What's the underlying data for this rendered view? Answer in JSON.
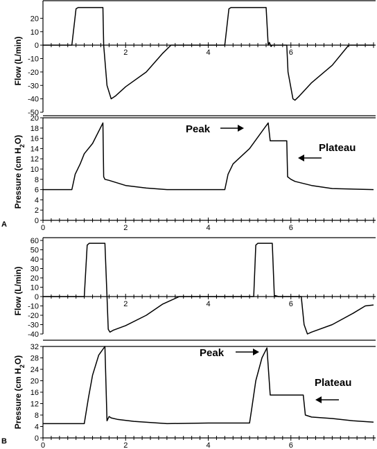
{
  "chart_data": [
    {
      "panel": "A",
      "type": "line",
      "ylabel": "Flow (L/min)",
      "ylim": [
        -50,
        30
      ],
      "yticks": [
        -50,
        -40,
        -30,
        -20,
        -10,
        0,
        10,
        20
      ],
      "xlim": [
        0,
        8
      ],
      "xticks": [
        2,
        4,
        6
      ],
      "x": [
        0,
        0.7,
        0.8,
        0.85,
        1.45,
        1.47,
        1.55,
        1.65,
        1.75,
        2.0,
        2.5,
        2.9,
        3.1,
        4.4,
        4.5,
        4.55,
        5.4,
        5.45,
        5.48,
        5.52,
        5.55,
        5.9,
        5.93,
        6.05,
        6.1,
        6.2,
        6.5,
        7.0,
        7.4,
        8.0
      ],
      "y": [
        0,
        0,
        27,
        28,
        28,
        0,
        -30,
        -40,
        -38,
        -31,
        -20,
        -6,
        0,
        0,
        27,
        28,
        28,
        0,
        2,
        -1,
        0,
        0,
        -20,
        -40,
        -41,
        -38,
        -28,
        -15,
        0,
        0
      ],
      "title": "",
      "xlabel": ""
    },
    {
      "panel": "A",
      "type": "line",
      "ylabel": "Pressure (cm H2O)",
      "ylim": [
        0,
        20
      ],
      "yticks": [
        0,
        2,
        4,
        6,
        8,
        10,
        12,
        14,
        16,
        18,
        20
      ],
      "xlim": [
        0,
        8
      ],
      "xticks": [
        0,
        2,
        4,
        6
      ],
      "x": [
        0,
        0.7,
        0.78,
        0.9,
        1.0,
        1.2,
        1.45,
        1.47,
        1.5,
        1.6,
        2.0,
        2.5,
        3.0,
        4.0,
        4.4,
        4.48,
        4.6,
        5.0,
        5.45,
        5.5,
        5.9,
        5.92,
        6.0,
        6.1,
        6.5,
        7.0,
        8.0
      ],
      "y": [
        6,
        6,
        9,
        11,
        13,
        15,
        19,
        8.5,
        8,
        7.8,
        6.8,
        6.3,
        6,
        6,
        6,
        9,
        11,
        14,
        19,
        15.5,
        15.5,
        8.5,
        8,
        7.6,
        6.8,
        6.2,
        6
      ],
      "annotations": [
        "Peak",
        "Plateau"
      ],
      "title": "",
      "xlabel": ""
    },
    {
      "panel": "B",
      "type": "line",
      "ylabel": "Flow (L/min)",
      "ylim": [
        -40,
        60
      ],
      "yticks": [
        -40,
        -30,
        -20,
        -10,
        0,
        10,
        20,
        30,
        40,
        50,
        60
      ],
      "xlim": [
        0,
        8
      ],
      "xticks": [
        2,
        4,
        6
      ],
      "x": [
        0,
        1.0,
        1.07,
        1.12,
        1.5,
        1.55,
        1.58,
        1.62,
        1.7,
        2.0,
        2.5,
        2.9,
        3.3,
        3.8,
        5.1,
        5.15,
        5.2,
        5.55,
        5.6,
        5.62,
        5.7,
        6.25,
        6.32,
        6.4,
        6.5,
        7.0,
        7.5,
        7.8,
        8.0
      ],
      "y": [
        0,
        0,
        55,
        57,
        57,
        0,
        -35,
        -38,
        -36,
        -31,
        -20,
        -8,
        0,
        0,
        0,
        55,
        57,
        57,
        0,
        1,
        0,
        0,
        -30,
        -40,
        -38,
        -30,
        -18,
        -10,
        -9
      ],
      "title": "",
      "xlabel": ""
    },
    {
      "panel": "B",
      "type": "line",
      "ylabel": "Pressure (cm H2O)",
      "ylim": [
        0,
        32
      ],
      "yticks": [
        0,
        4,
        8,
        12,
        16,
        20,
        24,
        28,
        32
      ],
      "xlim": [
        0,
        8
      ],
      "xticks": [
        0,
        2,
        4,
        6
      ],
      "x": [
        0,
        1.0,
        1.1,
        1.2,
        1.35,
        1.5,
        1.55,
        1.6,
        1.65,
        1.8,
        2.2,
        3.0,
        4.0,
        5.0,
        5.05,
        5.15,
        5.3,
        5.42,
        5.5,
        5.55,
        6.3,
        6.35,
        6.5,
        7.0,
        7.5,
        8.0
      ],
      "y": [
        5,
        5,
        14,
        22,
        29,
        32,
        6,
        7.5,
        7,
        6.5,
        5.8,
        5,
        5.2,
        5.2,
        10,
        20,
        28,
        31.5,
        15,
        15,
        15,
        8,
        7.3,
        6.8,
        6,
        5.5
      ],
      "annotations": [
        "Peak",
        "Plateau"
      ],
      "title": "",
      "xlabel": ""
    }
  ],
  "panel_labels": [
    "A",
    "B"
  ],
  "axis_titles": {
    "flow": "Flow (L/min)",
    "pressure_main": "Pressure (cm H",
    "pressure_sub": "2",
    "pressure_end": "O)"
  },
  "annotations": {
    "peak": "Peak",
    "plateau": "Plateau"
  },
  "line_color": "#000000"
}
